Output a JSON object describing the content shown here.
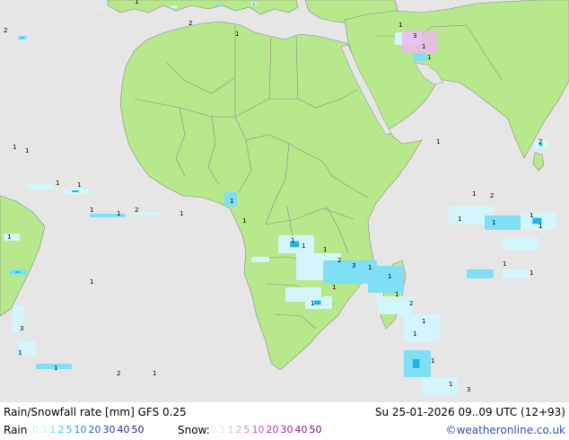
{
  "map": {
    "colors": {
      "land": "#b7e98c",
      "sea": "#e6e6e6",
      "border": "#8a8a8a",
      "precip_light": "#d2f6fb",
      "precip_mid": "#7fdff5",
      "precip_strong": "#1fb4e6",
      "snow": "#f0b6f0"
    },
    "precip_value_labels": [
      "1",
      "2",
      "3"
    ]
  },
  "footer": {
    "title": "Rain/Snowfall rate [mm] GFS 0.25",
    "datetime": "Su 25-01-2026 09..09 UTC (12+93)",
    "rain_label": "Rain",
    "snow_label": "Snow:",
    "credit": "©weatheronline.co.uk",
    "rain_scale": [
      {
        "label": "0.1",
        "color": "#bfeef8"
      },
      {
        "label": "1",
        "color": "#7fdff5"
      },
      {
        "label": "2",
        "color": "#3fcfee"
      },
      {
        "label": "5",
        "color": "#1fb4e6"
      },
      {
        "label": "10",
        "color": "#1e90d8"
      },
      {
        "label": "20",
        "color": "#1a60c0"
      },
      {
        "label": "30",
        "color": "#2a3aa8"
      },
      {
        "label": "40",
        "color": "#2a2a90"
      },
      {
        "label": "50",
        "color": "#1a1a70"
      }
    ],
    "snow_scale": [
      {
        "label": "0.1",
        "color": "#f6d6f6"
      },
      {
        "label": "1",
        "color": "#eec0ee"
      },
      {
        "label": "2",
        "color": "#e6a8e6"
      },
      {
        "label": "5",
        "color": "#d880d8"
      },
      {
        "label": "10",
        "color": "#c850c8"
      },
      {
        "label": "20",
        "color": "#b830b8"
      },
      {
        "label": "30",
        "color": "#a020a0"
      },
      {
        "label": "40",
        "color": "#901090"
      },
      {
        "label": "50",
        "color": "#800080"
      }
    ]
  }
}
